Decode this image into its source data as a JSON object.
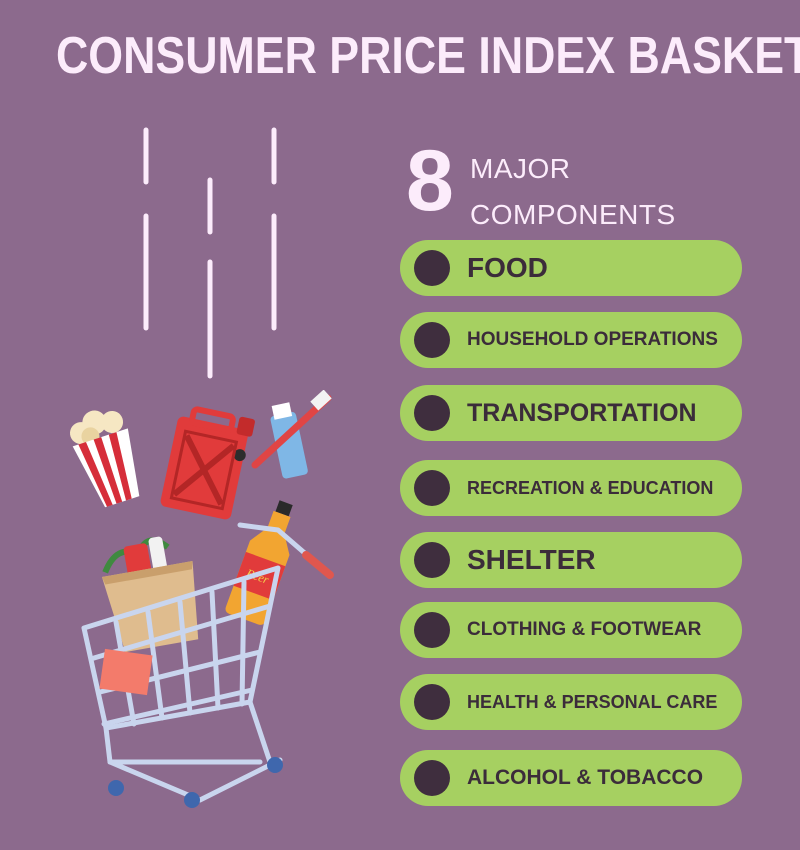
{
  "title": "CONSUMER PRICE INDEX BASKET",
  "count": "8",
  "count_label_line1": "MAJOR",
  "count_label_line2": "COMPONENTS",
  "components": [
    "FOOD",
    "HOUSEHOLD OPERATIONS",
    "TRANSPORTATION",
    "RECREATION & EDUCATION",
    "SHELTER",
    "CLOTHING & FOOTWEAR",
    "HEALTH & PERSONAL CARE",
    "ALCOHOL & TOBACCO"
  ],
  "beer_label": "Beer",
  "colors": {
    "background": "#8c6a8d",
    "pill": "#a6d061",
    "dot": "#3f2e3e",
    "text_light": "#fcecfb",
    "text_dark": "#3b2c3a"
  },
  "illustration_icons": [
    "popcorn-icon",
    "gas-can-icon",
    "toothbrush-icon",
    "toothpaste-icon",
    "beer-bottle-icon",
    "grocery-bag-icon",
    "shopping-cart-icon"
  ]
}
